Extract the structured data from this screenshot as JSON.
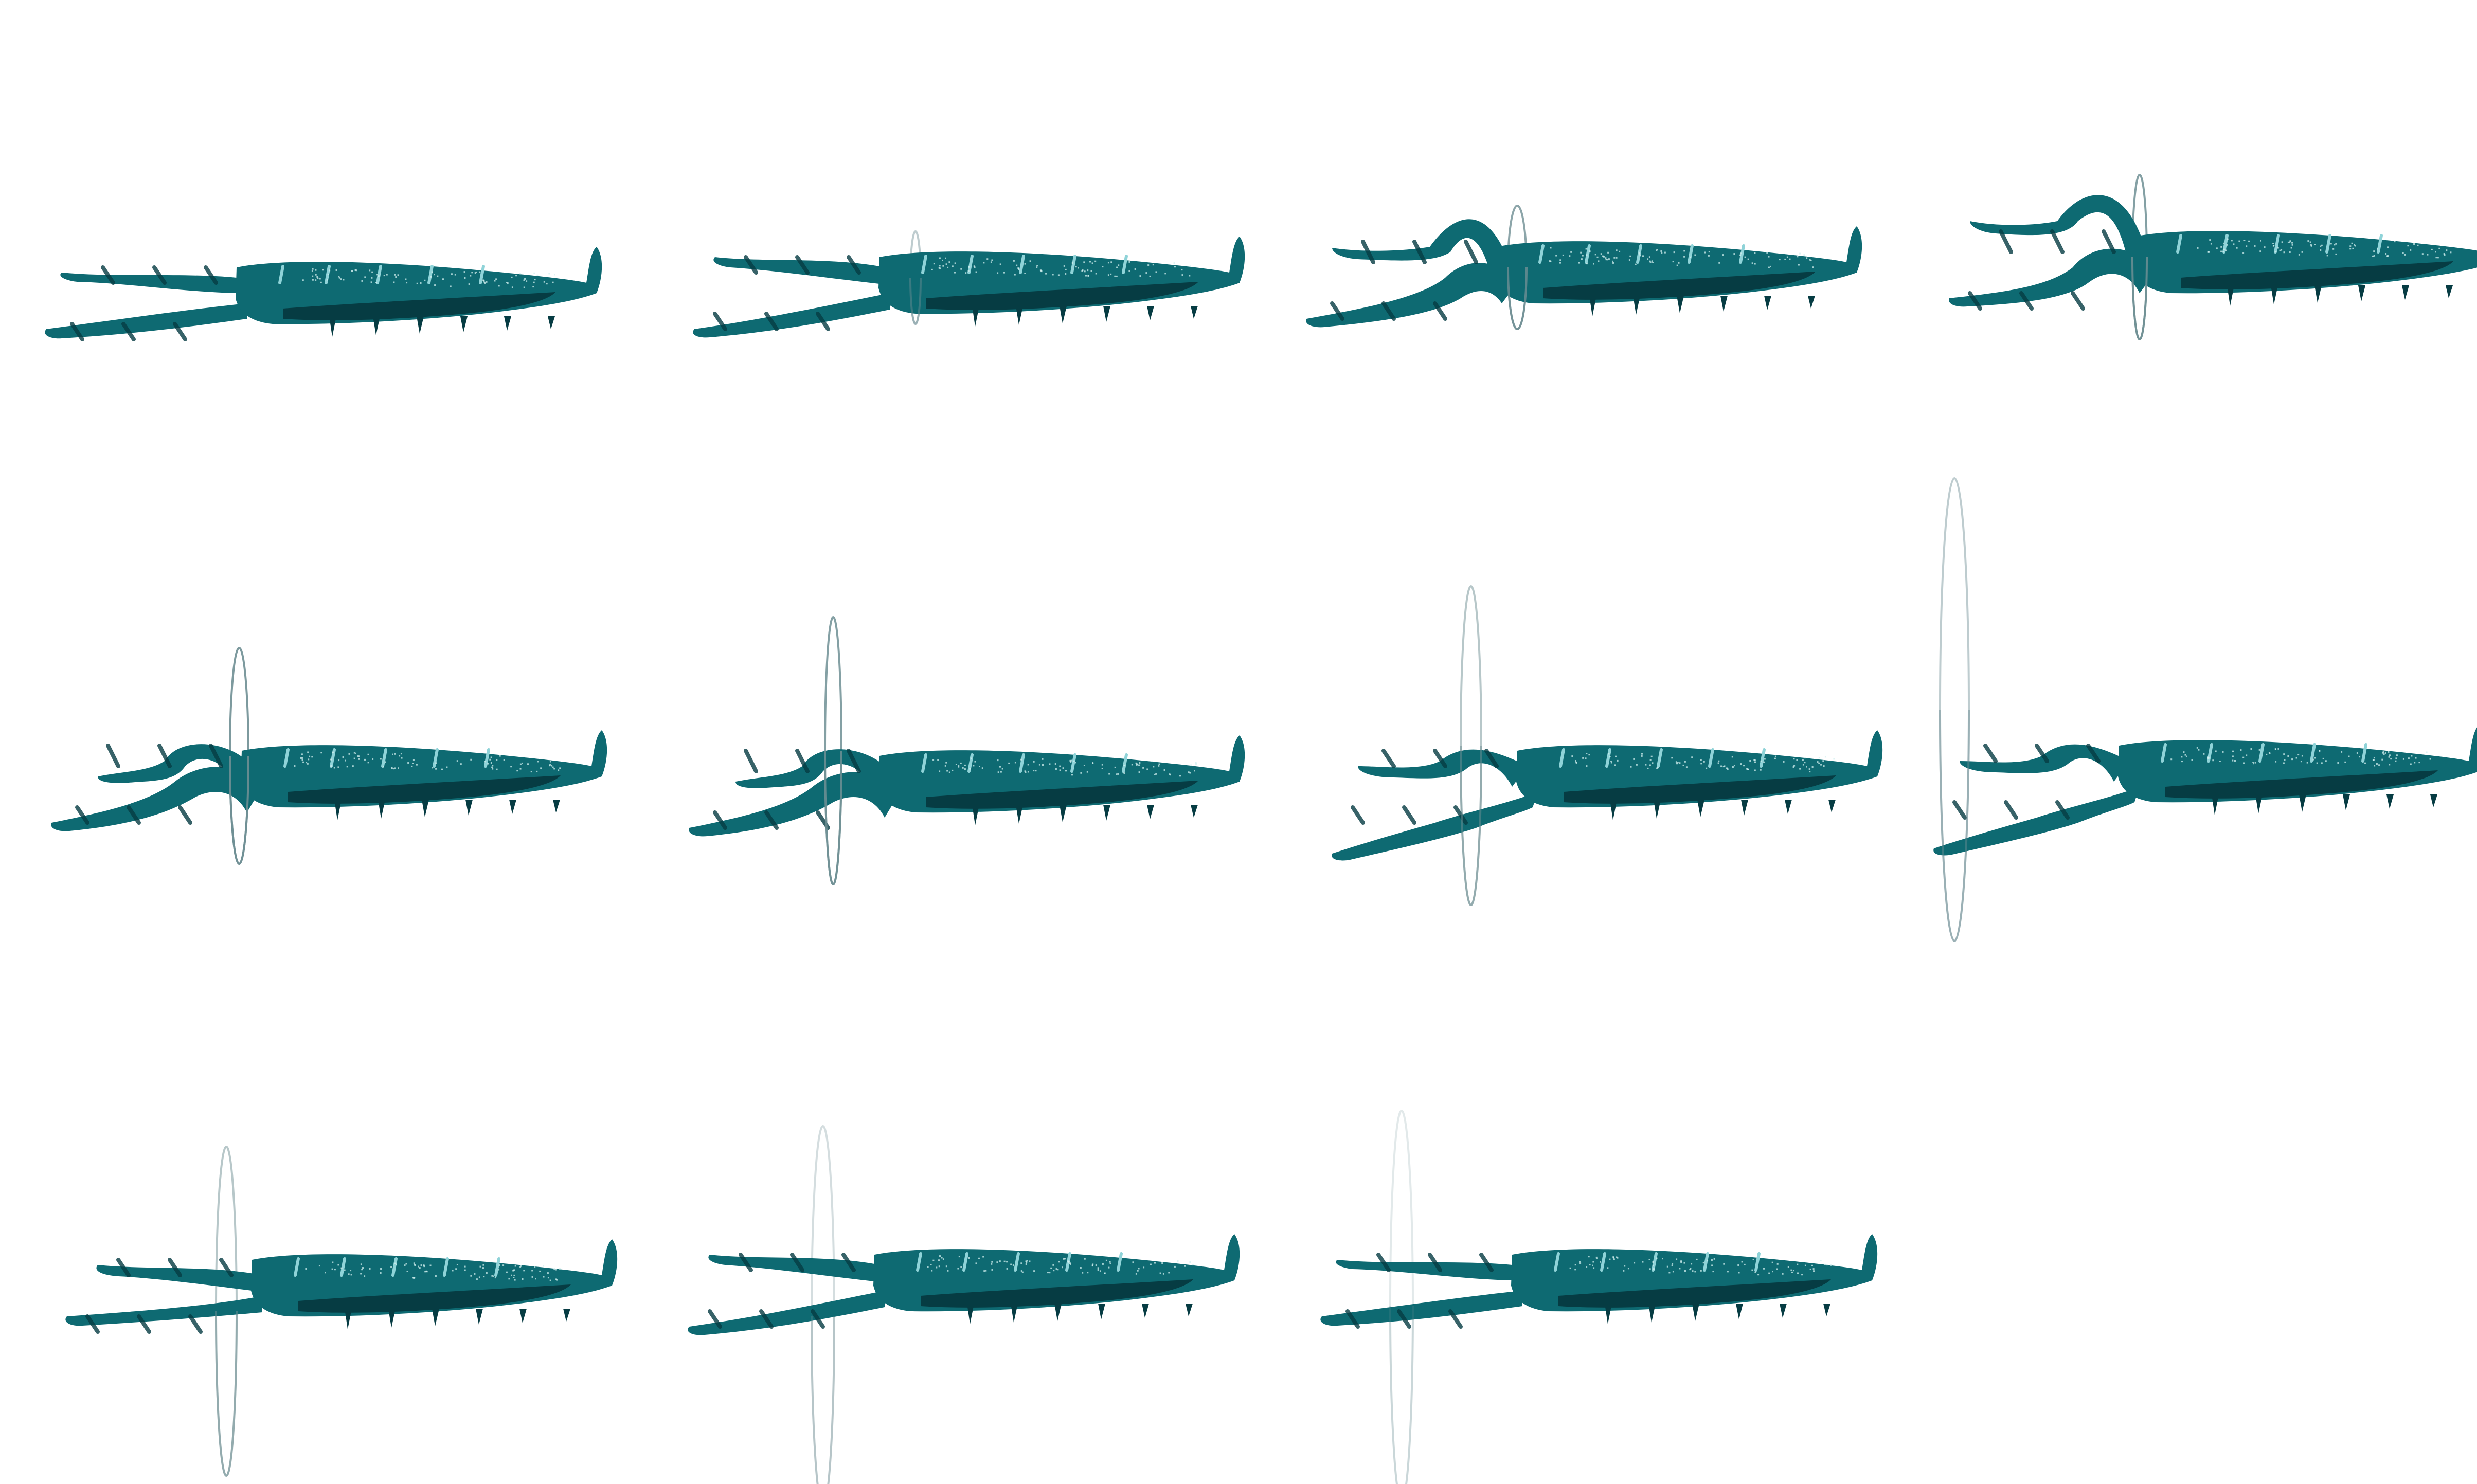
{
  "sprite_sheet": {
    "background": "#ffffff",
    "columns": 4,
    "rows": 3,
    "frame_count": 11,
    "colors": {
      "body": "#0e6a72",
      "body_dark": "#063c43",
      "speckle": "#d2efef",
      "highlight": "#8fd3d8",
      "ring": "#6f8f94"
    },
    "frames": [
      {
        "index": 1,
        "pose": "claws-closed-straight",
        "ring_opacity": 0.0
      },
      {
        "index": 2,
        "pose": "claws-open",
        "ring_opacity": 0.45
      },
      {
        "index": 3,
        "pose": "claws-curl",
        "ring_opacity": 0.8
      },
      {
        "index": 4,
        "pose": "claws-curl-high",
        "ring_opacity": 0.85
      },
      {
        "index": 5,
        "pose": "claws-curl-back",
        "ring_opacity": 0.9
      },
      {
        "index": 6,
        "pose": "claws-curl-back",
        "ring_opacity": 0.85
      },
      {
        "index": 7,
        "pose": "claws-release",
        "ring_opacity": 0.5
      },
      {
        "index": 8,
        "pose": "claws-release",
        "ring_opacity": 0.45
      },
      {
        "index": 9,
        "pose": "claws-open",
        "ring_opacity": 0.5
      },
      {
        "index": 10,
        "pose": "claws-open",
        "ring_opacity": 0.3
      },
      {
        "index": 11,
        "pose": "claws-closed-straight",
        "ring_opacity": 0.2
      }
    ]
  }
}
